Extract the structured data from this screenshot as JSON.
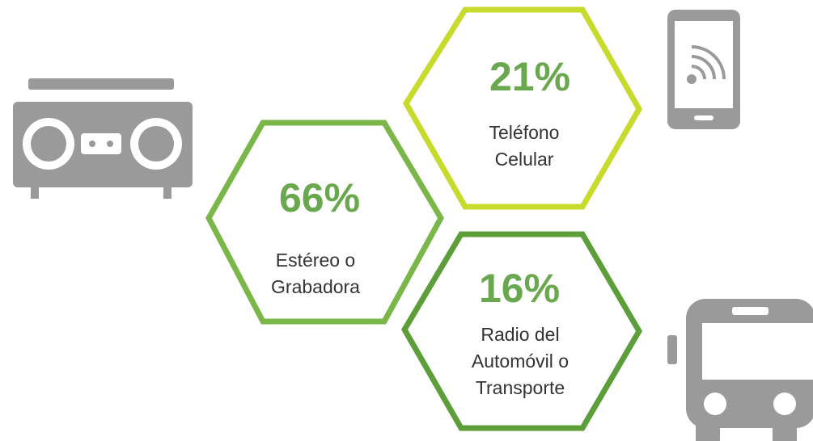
{
  "items": [
    {
      "value": "66%",
      "label": [
        "Estéreo o",
        "Grabadora"
      ]
    },
    {
      "value": "21%",
      "label": [
        "Teléfono",
        "Celular"
      ]
    },
    {
      "value": "16%",
      "label": [
        "Radio del",
        "Automóvil o",
        "Transporte"
      ]
    }
  ]
}
